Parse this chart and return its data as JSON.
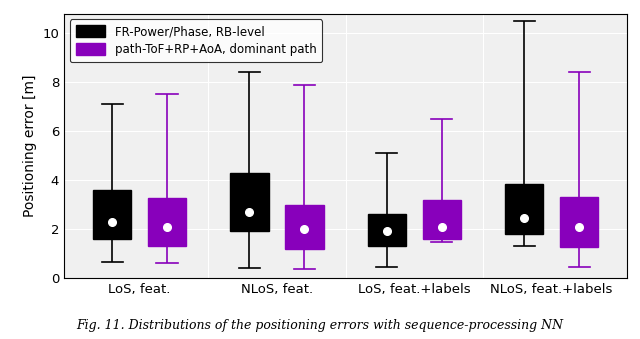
{
  "title": "",
  "ylabel": "Positioning error [m]",
  "xlabel": "",
  "ylim": [
    0,
    10.8
  ],
  "yticks": [
    0,
    2,
    4,
    6,
    8,
    10
  ],
  "group_labels": [
    "LoS, feat.",
    "NLoS, feat.",
    "LoS, feat.+labels",
    "NLoS, feat.+labels"
  ],
  "legend_labels": [
    "FR-Power/Phase, RB-level",
    "path-ToF+RP+AoA, dominant path"
  ],
  "colors": [
    "black",
    "#8800bb"
  ],
  "box_width": 0.28,
  "offsets": [
    -0.2,
    0.2
  ],
  "boxes": {
    "black": [
      {
        "whislo": 0.65,
        "q1": 1.6,
        "med": 2.3,
        "q3": 3.6,
        "whishi": 7.1,
        "mean": 2.3
      },
      {
        "whislo": 0.4,
        "q1": 1.9,
        "med": 2.7,
        "q3": 4.3,
        "whishi": 8.4,
        "mean": 2.7
      },
      {
        "whislo": 0.45,
        "q1": 1.3,
        "med": 1.9,
        "q3": 2.6,
        "whishi": 5.1,
        "mean": 1.9
      },
      {
        "whislo": 1.3,
        "q1": 1.8,
        "med": 2.45,
        "q3": 3.85,
        "whishi": 10.5,
        "mean": 2.45
      }
    ],
    "purple": [
      {
        "whislo": 0.6,
        "q1": 1.3,
        "med": 2.1,
        "q3": 3.25,
        "whishi": 7.5,
        "mean": 2.1
      },
      {
        "whislo": 0.35,
        "q1": 1.2,
        "med": 2.0,
        "q3": 3.0,
        "whishi": 7.9,
        "mean": 2.0
      },
      {
        "whislo": 1.45,
        "q1": 1.6,
        "med": 2.1,
        "q3": 3.2,
        "whishi": 6.5,
        "mean": 2.1
      },
      {
        "whislo": 0.45,
        "q1": 1.25,
        "med": 2.1,
        "q3": 3.3,
        "whishi": 8.4,
        "mean": 2.1
      }
    ]
  },
  "figsize": [
    6.4,
    3.39
  ],
  "dpi": 100,
  "caption": "Fig. 11. Distributions of the positioning errors with sequence-processing NN",
  "bg_color": "#f0f0f0",
  "grid_color": "#ffffff",
  "face_color": "#f0f0f0"
}
